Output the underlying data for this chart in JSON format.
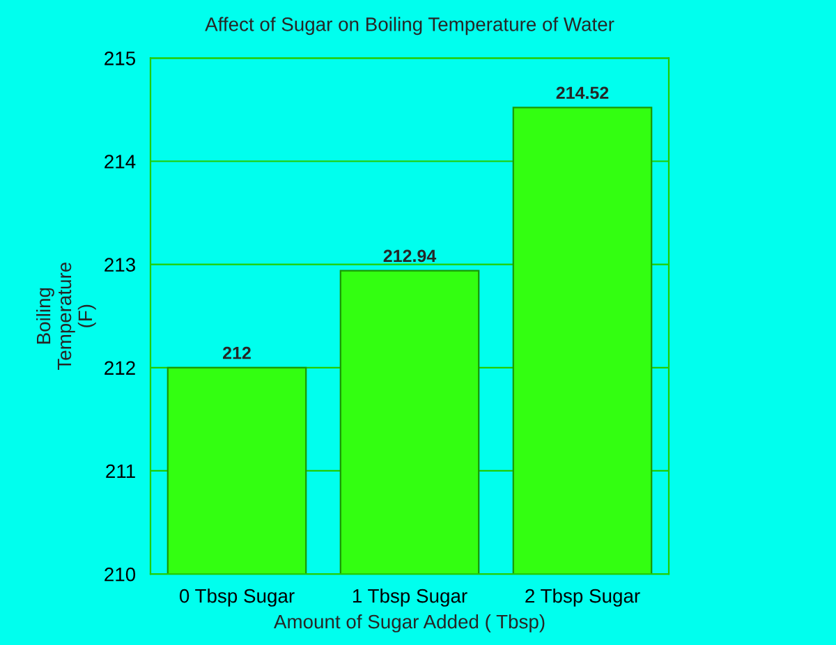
{
  "chart_data": {
    "type": "bar",
    "title": "Affect of Sugar on Boiling Temperature of Water",
    "xlabel": "Amount of Sugar Added ( Tbsp)",
    "ylabel": "Boiling\nTemperature\n(F)",
    "categories": [
      "0 Tbsp Sugar",
      "1 Tbsp Sugar",
      "2 Tbsp Sugar"
    ],
    "values": [
      212,
      212.94,
      214.52
    ],
    "color": "#33ff11",
    "ylim": [
      210,
      215
    ],
    "yticks": [
      210,
      211,
      212,
      213,
      214,
      215
    ],
    "grid": "y",
    "data_labels": true
  }
}
